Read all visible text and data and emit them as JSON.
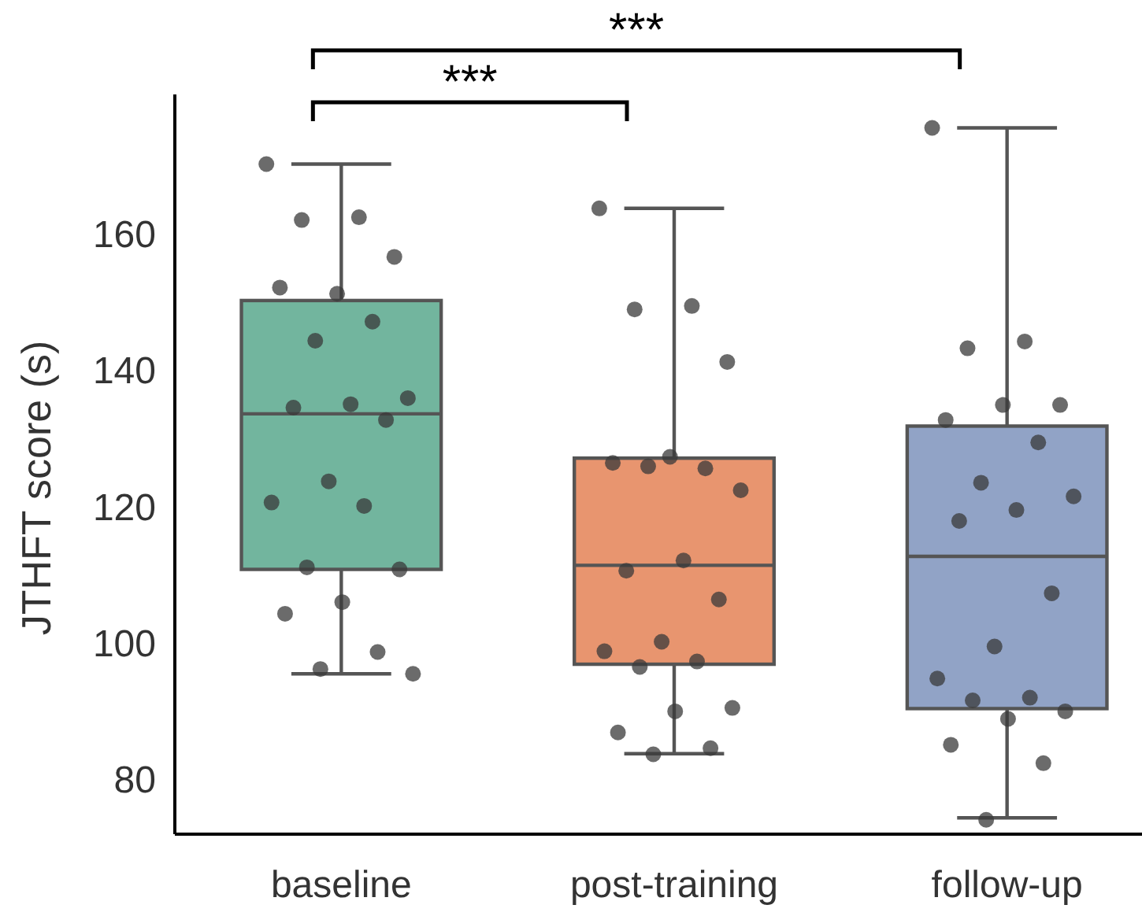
{
  "chart_data": {
    "type": "box",
    "ylabel": "JTHFT score (s)",
    "categories": [
      "baseline",
      "post-training",
      "follow-up"
    ],
    "colors": [
      "#72b59e",
      "#e8956f",
      "#91a3c6"
    ],
    "boxes": [
      {
        "low": 95.5,
        "q1": 110.8,
        "median": 133.6,
        "q3": 150.2,
        "high": 170.2
      },
      {
        "low": 83.8,
        "q1": 96.9,
        "median": 111.4,
        "q3": 127.1,
        "high": 163.7
      },
      {
        "low": 74.4,
        "q1": 90.4,
        "median": 112.7,
        "q3": 131.8,
        "high": 175.5
      }
    ],
    "series": [
      {
        "type": "scatter",
        "color": "#3a3a3a",
        "x": [
          "baseline",
          "baseline",
          "baseline",
          "baseline",
          "baseline",
          "baseline",
          "baseline",
          "baseline",
          "baseline",
          "baseline",
          "baseline",
          "baseline",
          "baseline",
          "baseline",
          "baseline",
          "baseline",
          "baseline",
          "baseline",
          "baseline",
          "baseline",
          "baseline",
          "baseline"
        ],
        "values": [
          170.2,
          162.4,
          162.0,
          156.6,
          151.2,
          152.1,
          147.1,
          144.3,
          135.9,
          135.0,
          134.5,
          132.7,
          123.7,
          120.6,
          120.1,
          111.1,
          110.8,
          106.0,
          104.3,
          98.7,
          96.2,
          95.5
        ]
      },
      {
        "type": "scatter",
        "color": "#3a3a3a",
        "x": [
          "post-training",
          "post-training",
          "post-training",
          "post-training",
          "post-training",
          "post-training",
          "post-training",
          "post-training",
          "post-training",
          "post-training",
          "post-training",
          "post-training",
          "post-training",
          "post-training",
          "post-training",
          "post-training",
          "post-training",
          "post-training",
          "post-training",
          "post-training",
          "post-training"
        ],
        "values": [
          163.7,
          149.4,
          148.9,
          141.2,
          127.3,
          126.4,
          125.6,
          125.9,
          122.4,
          112.1,
          110.6,
          106.4,
          100.2,
          98.8,
          97.3,
          96.5,
          90.5,
          90.0,
          86.9,
          84.6,
          83.7
        ]
      },
      {
        "type": "scatter",
        "color": "#3a3a3a",
        "x": [
          "follow-up",
          "follow-up",
          "follow-up",
          "follow-up",
          "follow-up",
          "follow-up",
          "follow-up",
          "follow-up",
          "follow-up",
          "follow-up",
          "follow-up",
          "follow-up",
          "follow-up",
          "follow-up",
          "follow-up",
          "follow-up",
          "follow-up",
          "follow-up",
          "follow-up",
          "follow-up",
          "follow-up"
        ],
        "values": [
          175.5,
          144.2,
          143.2,
          134.9,
          134.9,
          132.7,
          129.4,
          123.5,
          121.5,
          119.5,
          117.9,
          107.3,
          99.5,
          94.8,
          92.0,
          91.6,
          90.0,
          88.9,
          85.1,
          82.4,
          74.1
        ]
      }
    ],
    "ylim": [
      72,
      180.4
    ],
    "yticks": [
      80,
      100,
      120,
      140,
      160
    ],
    "grid": false,
    "annotations": [
      "***",
      "***"
    ]
  }
}
